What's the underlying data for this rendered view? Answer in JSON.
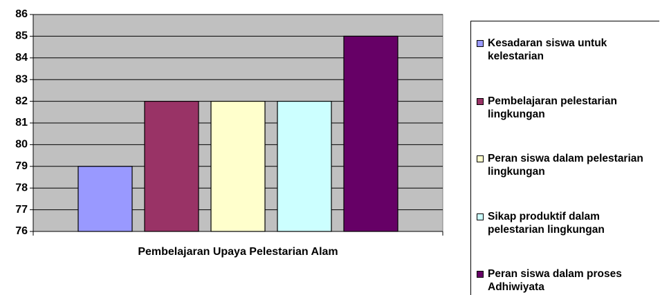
{
  "chart_data": {
    "type": "bar",
    "categories": [
      "Pembelajaran Upaya Pelestarian Alam"
    ],
    "series": [
      {
        "name": "Kesadaran siswa untuk kelestarian",
        "color": "#9999ff",
        "values": [
          79
        ]
      },
      {
        "name": "Pembelajaran pelestarian lingkungan",
        "color": "#993366",
        "values": [
          82
        ]
      },
      {
        "name": "Peran siswa dalam pelestarian lingkungan",
        "color": "#ffffcc",
        "values": [
          82
        ]
      },
      {
        "name": "Sikap produktif dalam pelestarian lingkungan",
        "color": "#ccffff",
        "values": [
          82
        ]
      },
      {
        "name": "Peran siswa dalam  proses Adhiwiyata",
        "color": "#660066",
        "values": [
          85
        ]
      }
    ],
    "ylim": [
      76,
      86
    ],
    "yticks": [
      76,
      77,
      78,
      79,
      80,
      81,
      82,
      83,
      84,
      85,
      86
    ],
    "grid": true,
    "legend": "right",
    "plot_background": "#c0c0c0"
  }
}
